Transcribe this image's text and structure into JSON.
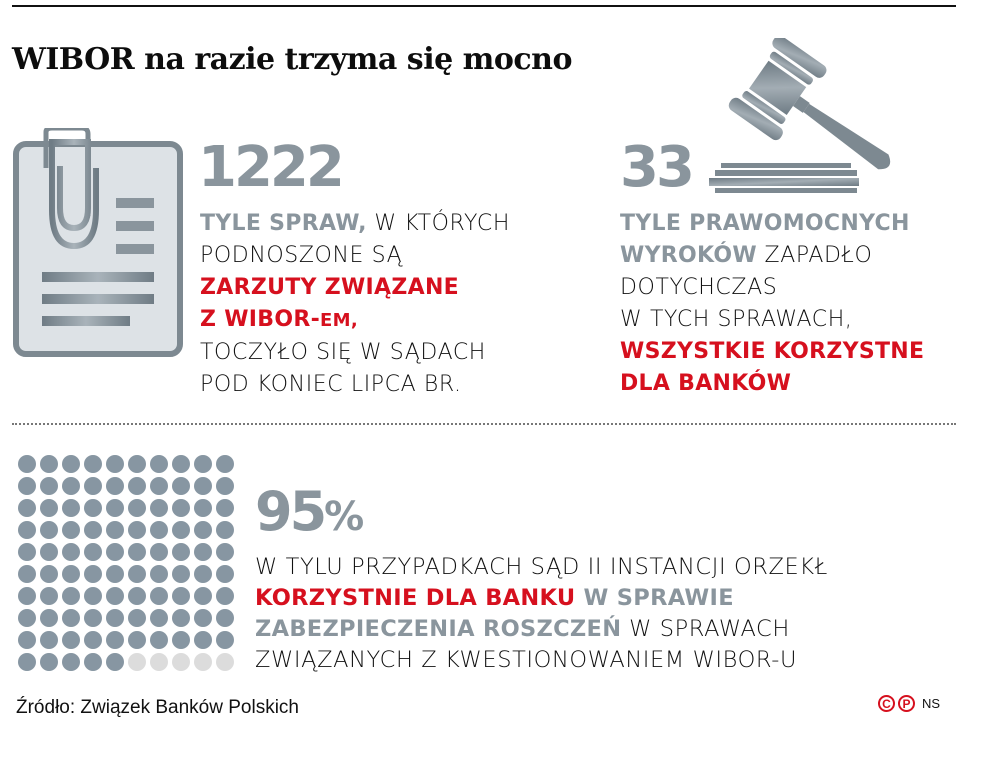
{
  "header": {
    "title": "WIBOR na razie trzyma się mocno"
  },
  "stat_cases": {
    "number": "1222",
    "icon": "document-paperclip-icon",
    "lines": [
      [
        {
          "text": "TYLE SPRAW,",
          "style": "gray-b"
        },
        {
          "text": " W KTÓRYCH",
          "style": "plain"
        }
      ],
      [
        {
          "text": "PODNOSZONE SĄ",
          "style": "plain"
        }
      ],
      [
        {
          "text": "ZARZUTY ZWIĄZANE",
          "style": "red-b"
        }
      ],
      [
        {
          "text": "Z WIBOR-",
          "style": "red-b"
        },
        {
          "text": "EM,",
          "style": "red-b-small"
        }
      ],
      [
        {
          "text": "TOCZYŁO SIĘ W SĄDACH",
          "style": "plain"
        }
      ],
      [
        {
          "text": "POD KONIEC LIPCA BR.",
          "style": "plain"
        }
      ]
    ]
  },
  "stat_verdicts": {
    "number": "33",
    "icon": "gavel-icon",
    "lines": [
      [
        {
          "text": "TYLE PRAWOMOCNYCH",
          "style": "gray-b"
        }
      ],
      [
        {
          "text": "WYROKÓW",
          "style": "gray-b"
        },
        {
          "text": " ZAPADŁO",
          "style": "plain"
        }
      ],
      [
        {
          "text": "DOTYCHCZAS",
          "style": "plain"
        }
      ],
      [
        {
          "text": "W TYCH SPRAWACH,",
          "style": "plain"
        }
      ],
      [
        {
          "text": "WSZYSTKIE KORZYSTNE",
          "style": "red-b"
        }
      ],
      [
        {
          "text": "DLA BANKÓW",
          "style": "red-b"
        }
      ]
    ]
  },
  "stat_percent": {
    "number": "95",
    "percent_sign": "%",
    "lines": [
      [
        {
          "text": "W TYLU PRZYPADKACH SĄD II INSTANCJI ORZEKŁ",
          "style": "plain"
        }
      ],
      [
        {
          "text": "KORZYSTNIE DLA BANKU",
          "style": "red-b"
        },
        {
          "text": " W SPRAWIE",
          "style": "gray-b"
        }
      ],
      [
        {
          "text": "ZABEZPIECZENIA ROSZCZEŃ",
          "style": "gray-b"
        },
        {
          "text": " W SPRAWACH",
          "style": "plain"
        }
      ],
      [
        {
          "text": "ZWIĄZANYCH Z KWESTIONOWANIEM WIBOR-U",
          "style": "plain"
        }
      ]
    ]
  },
  "chart_data": {
    "type": "waffle",
    "title": "95%",
    "rows": 10,
    "cols": 10,
    "filled": 95,
    "empty": 5,
    "filled_color": "#8796a2",
    "empty_color": "#dcdcdc"
  },
  "footer": {
    "source": "Źródło: Związek Banków Polskich",
    "copyright_c": "C",
    "copyright_p": "P",
    "author": "NS"
  },
  "colors": {
    "accent_red": "#d6101e",
    "accent_gray": "#8a959d"
  }
}
